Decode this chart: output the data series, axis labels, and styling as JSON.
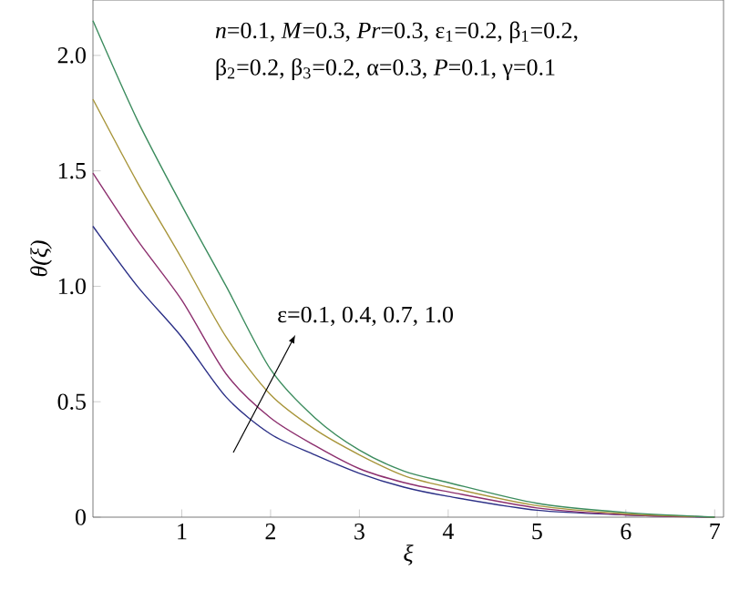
{
  "chart_data": {
    "type": "line",
    "xlabel": "ξ",
    "ylabel": "θ(ξ)",
    "x": [
      0,
      0.5,
      1,
      1.5,
      2,
      2.5,
      3,
      3.5,
      4,
      5,
      6,
      7
    ],
    "series": [
      {
        "color": "#2b2f86",
        "values": [
          1.26,
          1.0,
          0.78,
          0.52,
          0.36,
          0.27,
          0.19,
          0.13,
          0.09,
          0.03,
          0.01,
          0.0
        ]
      },
      {
        "color": "#8c2f6e",
        "values": [
          1.49,
          1.2,
          0.94,
          0.62,
          0.43,
          0.31,
          0.21,
          0.15,
          0.11,
          0.04,
          0.01,
          0.0
        ]
      },
      {
        "color": "#a8953a",
        "values": [
          1.81,
          1.45,
          1.12,
          0.78,
          0.53,
          0.38,
          0.27,
          0.18,
          0.13,
          0.05,
          0.015,
          0.0
        ]
      },
      {
        "color": "#3c8c5e",
        "values": [
          2.15,
          1.72,
          1.35,
          1.0,
          0.64,
          0.43,
          0.29,
          0.2,
          0.15,
          0.06,
          0.02,
          0.0
        ]
      }
    ],
    "xlim": [
      0,
      7.1
    ],
    "ylim": [
      0,
      2.24
    ],
    "xticks": [
      1,
      2,
      3,
      4,
      5,
      6,
      7
    ],
    "yticks": [
      0,
      0.5,
      {
        "value": 1,
        "label": "1.0"
      },
      1.5,
      {
        "value": 2,
        "label": "2.0"
      }
    ],
    "annotations": [
      "*n*=0.1, *M*=0.3, *Pr*=0.3, ε$_{1}$=0.2, β$_{1}$=0.2,",
      "β$_{2}$=0.2, β$_{3}$=0.2, α=0.3, *P*=0.1, γ=0.1",
      "ε=0.1, 0.4, 0.7, 1.0"
    ],
    "grid": false,
    "marker": "none",
    "line_style": "solid"
  }
}
